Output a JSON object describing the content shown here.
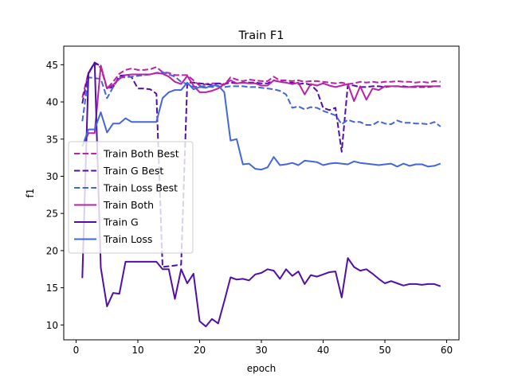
{
  "chart_data": {
    "type": "line",
    "title": "Train F1",
    "xlabel": "epoch",
    "ylabel": "f1",
    "xlim": [
      -2,
      62
    ],
    "ylim": [
      8,
      47.5
    ],
    "xticks": [
      0,
      10,
      20,
      30,
      40,
      50,
      60
    ],
    "yticks": [
      10,
      15,
      20,
      25,
      30,
      35,
      40,
      45
    ],
    "grid": false,
    "legend": "center-left",
    "x": [
      1,
      2,
      3,
      4,
      5,
      6,
      7,
      8,
      9,
      10,
      11,
      12,
      13,
      14,
      15,
      16,
      17,
      18,
      19,
      20,
      21,
      22,
      23,
      24,
      25,
      26,
      27,
      28,
      29,
      30,
      31,
      32,
      33,
      34,
      35,
      36,
      37,
      38,
      39,
      40,
      41,
      42,
      43,
      44,
      45,
      46,
      47,
      48,
      49,
      50,
      51,
      52,
      53,
      54,
      55,
      56,
      57,
      58,
      59
    ],
    "series": [
      {
        "name": "Train Both Best",
        "color": "#bb22aa",
        "dash": "dashed",
        "values": [
          40.6,
          43.9,
          45.2,
          44.6,
          41.8,
          42.7,
          43.8,
          44.3,
          44.5,
          44.3,
          44.3,
          44.4,
          44.7,
          44.0,
          43.9,
          43.6,
          43.6,
          43.6,
          42.9,
          42.2,
          42.4,
          42.5,
          42.5,
          42.3,
          43.3,
          43.0,
          42.8,
          43.0,
          42.9,
          42.8,
          42.8,
          43.4,
          42.9,
          42.9,
          42.8,
          42.9,
          42.7,
          42.8,
          42.8,
          42.7,
          42.6,
          42.5,
          42.6,
          42.4,
          42.5,
          42.7,
          42.6,
          42.7,
          42.6,
          42.7,
          42.7,
          42.8,
          42.7,
          42.7,
          42.6,
          42.7,
          42.6,
          42.8,
          42.7
        ]
      },
      {
        "name": "Train G Best",
        "color": "#5010a8",
        "dash": "dashed",
        "values": [
          39.8,
          43.9,
          45.3,
          44.8,
          41.8,
          42.0,
          43.5,
          43.6,
          43.3,
          41.8,
          41.8,
          41.7,
          41.1,
          17.8,
          17.9,
          18.0,
          18.1,
          42.6,
          42.6,
          42.5,
          42.4,
          42.3,
          42.5,
          42.4,
          42.6,
          42.5,
          42.6,
          42.6,
          42.6,
          42.5,
          42.5,
          42.9,
          42.7,
          42.6,
          42.6,
          42.4,
          42.5,
          42.3,
          41.5,
          39.2,
          38.9,
          39.2,
          33.3,
          42.3,
          42.2,
          42.0,
          42.0,
          42.1,
          42.1,
          42.0,
          42.1,
          42.1,
          42.1,
          42.0,
          42.0,
          42.0,
          42.0,
          42.1,
          42.1
        ]
      },
      {
        "name": "Train Loss Best",
        "color": "#4466dd",
        "dash": "dashed",
        "values": [
          37.4,
          43.3,
          43.2,
          43.1,
          40.5,
          42.0,
          43.3,
          43.3,
          43.4,
          43.5,
          43.6,
          43.7,
          43.9,
          44.0,
          43.7,
          43.4,
          42.7,
          42.4,
          42.0,
          42.1,
          42.1,
          42.0,
          42.1,
          42.0,
          42.1,
          42.1,
          42.1,
          42.0,
          42.0,
          41.9,
          41.8,
          41.7,
          41.5,
          41.0,
          39.2,
          39.4,
          39.0,
          39.3,
          39.2,
          38.8,
          38.5,
          38.2,
          37.0,
          37.6,
          37.3,
          37.3,
          36.9,
          36.9,
          37.4,
          37.1,
          37.0,
          37.5,
          37.2,
          37.2,
          37.1,
          37.1,
          37.0,
          37.3,
          36.7
        ]
      },
      {
        "name": "Train Both",
        "color": "#bb22aa",
        "dash": "solid",
        "values": [
          34.0,
          35.8,
          35.8,
          44.9,
          41.8,
          42.3,
          43.1,
          43.6,
          43.7,
          43.7,
          43.7,
          43.7,
          43.9,
          43.8,
          43.4,
          42.7,
          42.4,
          43.5,
          42.2,
          41.3,
          41.3,
          41.5,
          41.8,
          42.4,
          42.9,
          42.5,
          42.6,
          42.5,
          42.5,
          42.2,
          42.2,
          42.9,
          42.7,
          42.6,
          42.4,
          42.6,
          41.0,
          42.4,
          42.2,
          42.5,
          42.2,
          42.0,
          42.2,
          42.4,
          40.1,
          42.1,
          40.3,
          41.8,
          41.6,
          42.1,
          42.1,
          42.1,
          42.0,
          42.0,
          42.1,
          42.1,
          42.1,
          42.1,
          42.1
        ]
      },
      {
        "name": "Train G",
        "color": "#5010a8",
        "dash": "solid",
        "values": [
          16.3,
          43.8,
          45.3,
          17.7,
          12.5,
          14.3,
          14.2,
          18.5,
          18.5,
          18.5,
          18.5,
          18.5,
          18.5,
          17.5,
          17.5,
          13.5,
          17.5,
          15.6,
          16.9,
          10.5,
          9.8,
          10.8,
          10.2,
          13.2,
          16.4,
          16.1,
          16.2,
          16.0,
          16.8,
          17.0,
          17.5,
          17.3,
          16.2,
          17.5,
          16.6,
          17.2,
          15.5,
          16.7,
          16.5,
          16.8,
          17.1,
          17.2,
          13.7,
          19.0,
          17.8,
          17.3,
          17.5,
          16.9,
          16.2,
          15.6,
          15.9,
          15.6,
          15.3,
          15.5,
          15.5,
          15.4,
          15.5,
          15.5,
          15.2
        ]
      },
      {
        "name": "Train Loss",
        "color": "#4466dd",
        "dash": "solid",
        "values": [
          34.0,
          36.3,
          36.3,
          38.6,
          35.9,
          37.1,
          37.1,
          37.8,
          37.3,
          37.3,
          37.3,
          37.3,
          37.3,
          40.5,
          41.3,
          41.6,
          41.6,
          42.6,
          41.7,
          42.0,
          41.9,
          42.2,
          42.2,
          41.3,
          34.8,
          35.0,
          31.6,
          31.7,
          31.0,
          30.9,
          31.2,
          32.6,
          31.5,
          31.6,
          31.8,
          31.5,
          32.1,
          32.0,
          31.9,
          31.5,
          31.7,
          31.8,
          31.7,
          31.6,
          32.0,
          31.8,
          31.7,
          31.6,
          31.5,
          31.6,
          31.7,
          31.3,
          31.7,
          31.4,
          31.6,
          31.6,
          31.3,
          31.4,
          31.7
        ]
      }
    ]
  }
}
